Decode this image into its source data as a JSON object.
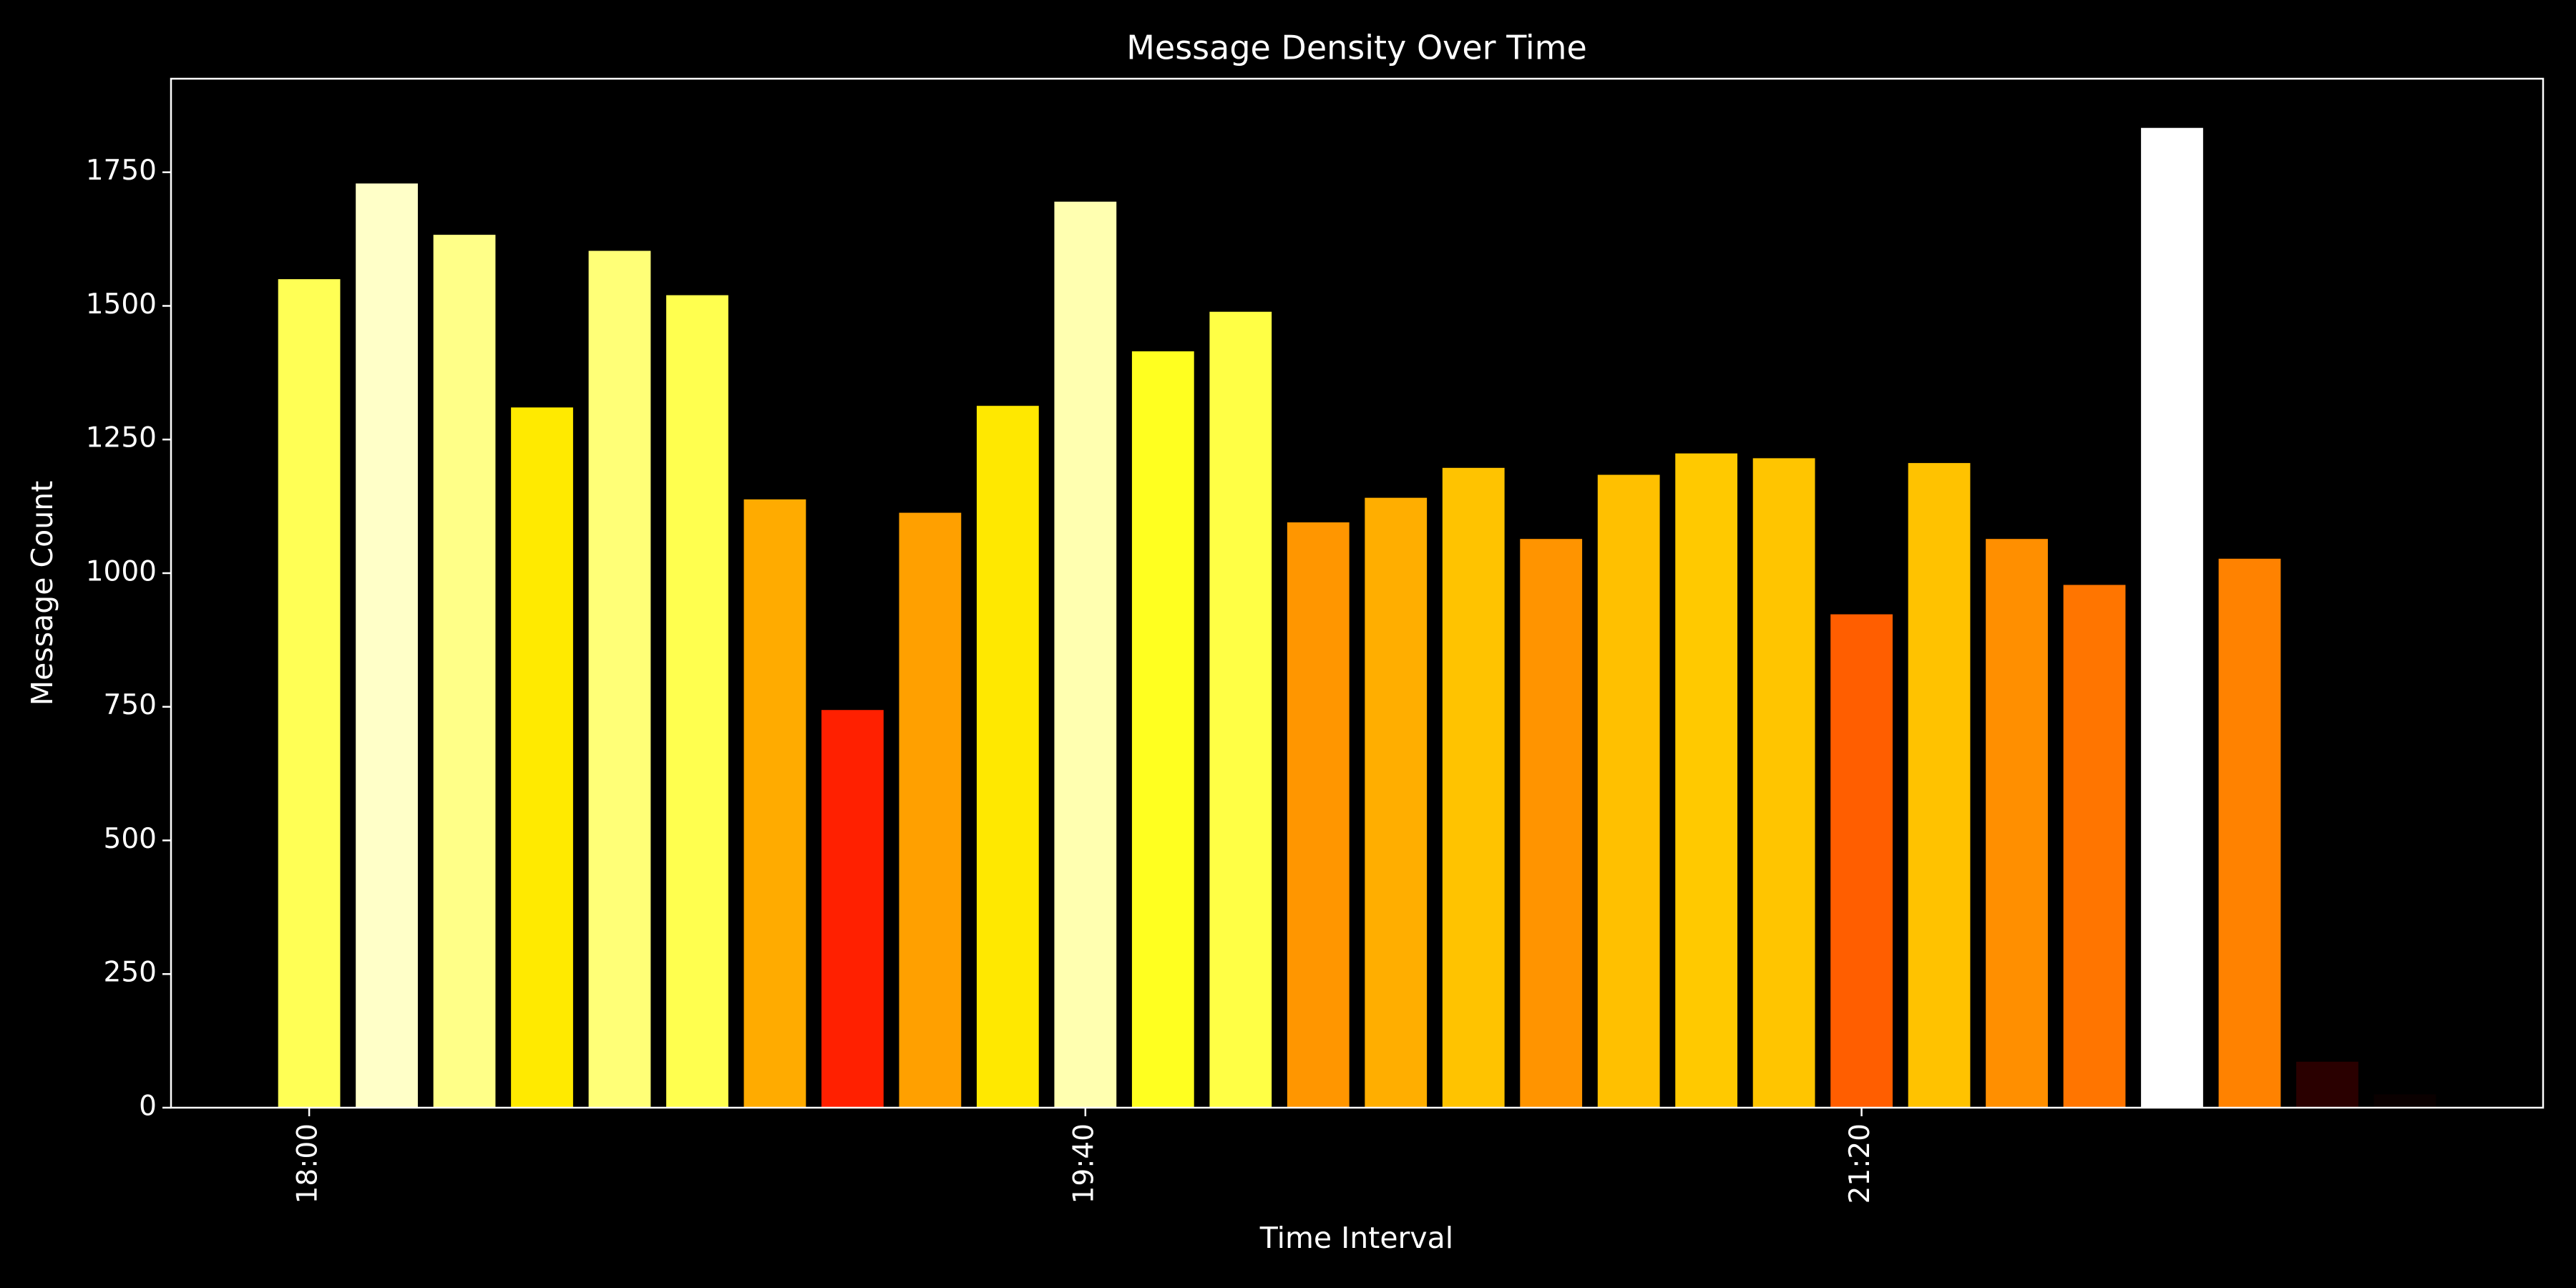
{
  "chart_data": {
    "type": "bar",
    "title": "Message Density Over Time",
    "x_label": "Time Interval",
    "y_label": "Message Count",
    "categories": [
      "18:00",
      null,
      null,
      null,
      null,
      null,
      null,
      null,
      null,
      null,
      "19:40",
      null,
      null,
      null,
      null,
      null,
      null,
      null,
      null,
      null,
      "21:20",
      null,
      null,
      null,
      null,
      null,
      null,
      null
    ],
    "values": [
      1550,
      1729,
      1633,
      1310,
      1603,
      1520,
      1138,
      744,
      1113,
      1313,
      1695,
      1415,
      1489,
      1095,
      1141,
      1197,
      1064,
      1184,
      1224,
      1215,
      923,
      1206,
      1064,
      978,
      1833,
      1027,
      86,
      25
    ],
    "colors": [
      "#ffff55",
      "#ffffc8",
      "#ffff88",
      "#ffea00",
      "#ffff77",
      "#ffff4f",
      "#ffab00",
      "#ff2000",
      "#ffa000",
      "#ffe800",
      "#ffffb0",
      "#ffff20",
      "#ffff45",
      "#ff9600",
      "#ffae00",
      "#ffc300",
      "#ff9400",
      "#ffc000",
      "#ffc900",
      "#ffc500",
      "#ff5e00",
      "#ffc200",
      "#ff8f00",
      "#ff7500",
      "#ffffff",
      "#ff8200",
      "#2a0000",
      "#0a0000"
    ],
    "ylim": [
      0,
      1925
    ],
    "yticks": [
      0,
      250,
      500,
      750,
      1000,
      1250,
      1500,
      1750
    ],
    "grid": false
  }
}
